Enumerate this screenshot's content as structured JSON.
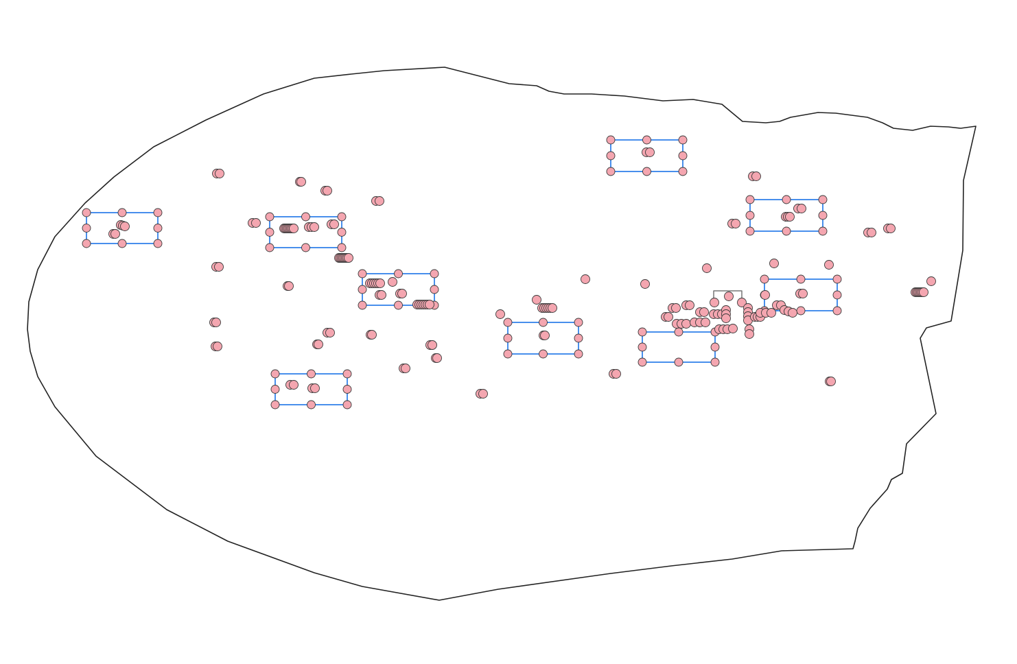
{
  "map": {
    "style": {
      "background": "#ffffff",
      "outline_stroke": "#222222",
      "point_fill": "#f4a6b0",
      "point_stroke": "#3a3a3a",
      "selection_stroke": "#1a73e8",
      "handle_fill": "#f4a6b0",
      "small_rect_stroke": "#777777"
    },
    "layers": [
      {
        "name": "boundary-polygon",
        "kind": "polygon"
      },
      {
        "name": "point-features",
        "kind": "points"
      },
      {
        "name": "selection-boxes",
        "kind": "selection",
        "count": 10
      }
    ]
  }
}
